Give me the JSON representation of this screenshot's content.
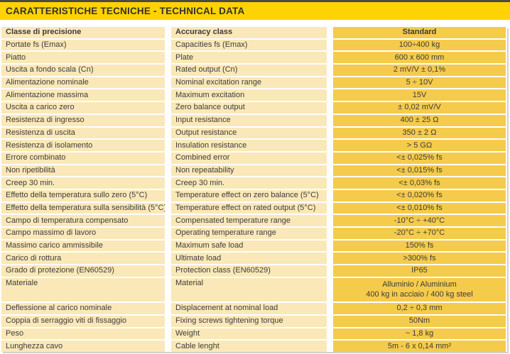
{
  "title": "CARATTERISTICHE TECNICHE - TECHNICAL DATA",
  "colors": {
    "title_bar_bg": "#ffd303",
    "title_text": "#33312c",
    "label_cell_bg": "#fbe8b8",
    "value_cell_bg": "#f5cb4b",
    "cell_text": "#3c3c3b",
    "row_separator": "#ffffff",
    "top_border": "#4b4a47",
    "edge_shadow": "#d2d1ca"
  },
  "table": {
    "header": {
      "it": "Classe di precisione",
      "en": "Accuracy class",
      "value": "Standard"
    },
    "rows": [
      {
        "it": "Portate fs (Emax)",
        "en": "Capacities fs (Emax)",
        "value": "100÷400 kg"
      },
      {
        "it": "Piatto",
        "en": "Plate",
        "value": "600 x 600 mm"
      },
      {
        "it": "Uscita a fondo scala (Cn)",
        "en": "Rated output (Cn)",
        "value": "2 mV/V ± 0,1%"
      },
      {
        "it": "Alimentazione nominale",
        "en": "Nominal excitation range",
        "value": "5 ÷ 10V"
      },
      {
        "it": "Alimentazione massima",
        "en": "Maximum excitation",
        "value": "15V"
      },
      {
        "it": "Uscita a carico zero",
        "en": "Zero balance output",
        "value": "± 0,02 mV/V"
      },
      {
        "it": "Resistenza di ingresso",
        "en": "Input resistance",
        "value": "400 ± 25 Ω"
      },
      {
        "it": "Resistenza di uscita",
        "en": "Output resistance",
        "value": "350 ± 2 Ω"
      },
      {
        "it": "Resistenza di isolamento",
        "en": "Insulation resistance",
        "value": "> 5 GΩ"
      },
      {
        "it": "Errore combinato",
        "en": "Combined error",
        "value": "<± 0,025% fs"
      },
      {
        "it": "Non ripetibilità",
        "en": "Non repeatability",
        "value": "<± 0,015% fs"
      },
      {
        "it": "Creep 30 min.",
        "en": "Creep 30 min.",
        "value": "<± 0,03% fs"
      },
      {
        "it": "Effetto della temperatura sullo zero (5°C)",
        "en": "Temperature effect on zero balance (5°C)",
        "value": "<± 0,020% fs"
      },
      {
        "it": "Effetto della temperatura sulla sensibilità (5°C)",
        "en": "Temperature effect on rated output (5°C)",
        "value": "<± 0,010% fs"
      },
      {
        "it": "Campo di temperatura compensato",
        "en": "Compensated temperature range",
        "value": "-10°C ÷ +40°C"
      },
      {
        "it": "Campo massimo di lavoro",
        "en": "Operating temperature range",
        "value": "-20°C ÷ +70°C"
      },
      {
        "it": "Massimo carico ammissibile",
        "en": "Maximum safe load",
        "value": "150% fs"
      },
      {
        "it": "Carico di rottura",
        "en": "Ultimate load",
        "value": ">300% fs"
      },
      {
        "it": "Grado di protezione (EN60529)",
        "en": "Protection class (EN60529)",
        "value": "IP65"
      },
      {
        "it": "Materiale",
        "en": "Material",
        "value": "Alluminio / Aluminium",
        "value2": "400 kg in acciaio / 400 kg steel"
      },
      {
        "it": "Deflessione al carico nominale",
        "en": "Displacement at nominal load",
        "value": "0,2 ÷ 0,3 mm"
      },
      {
        "it": "Coppia di serraggio viti di fissaggio",
        "en": "Fixing screws tightening torque",
        "value": "50Nm"
      },
      {
        "it": "Peso",
        "en": "Weight",
        "value": "~ 1,8 kg"
      },
      {
        "it": "Lunghezza cavo",
        "en": "Cable lenght",
        "value": "5m - 6 x 0,14 mm²"
      }
    ]
  }
}
